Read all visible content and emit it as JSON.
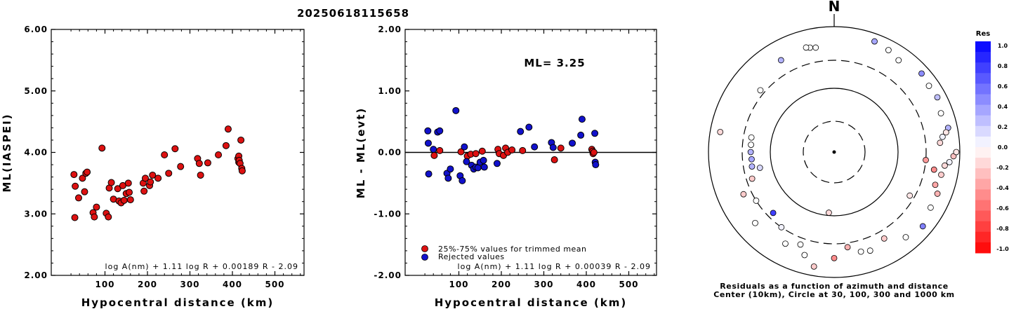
{
  "title": "20250618115658",
  "colors": {
    "accepted": "#dd1111",
    "rejected": "#1111cc",
    "axis": "#000000"
  },
  "chart_data": [
    {
      "type": "scatter",
      "name_key": "left",
      "xlabel": "Hypocentral distance (km)",
      "ylabel": "ML(IASPEI)",
      "xlim": [
        0,
        600
      ],
      "ylim": [
        2.0,
        6.0
      ],
      "xticks": [
        100,
        200,
        300,
        400,
        500
      ],
      "yticks": [
        "2.00",
        "3.00",
        "4.00",
        "5.00",
        "6.00"
      ],
      "formula": "log A(nm) + 1.11 log R + 0.00189 R - 2.09",
      "points": [
        {
          "x": 27,
          "y": 3.64
        },
        {
          "x": 30,
          "y": 3.45
        },
        {
          "x": 29,
          "y": 2.94
        },
        {
          "x": 38,
          "y": 3.26
        },
        {
          "x": 47,
          "y": 3.58
        },
        {
          "x": 52,
          "y": 3.36
        },
        {
          "x": 55,
          "y": 3.66
        },
        {
          "x": 58,
          "y": 3.68
        },
        {
          "x": 72,
          "y": 3.02
        },
        {
          "x": 75,
          "y": 2.95
        },
        {
          "x": 80,
          "y": 3.11
        },
        {
          "x": 93,
          "y": 4.07
        },
        {
          "x": 103,
          "y": 3.01
        },
        {
          "x": 108,
          "y": 2.95
        },
        {
          "x": 110,
          "y": 3.42
        },
        {
          "x": 115,
          "y": 3.51
        },
        {
          "x": 120,
          "y": 3.24
        },
        {
          "x": 130,
          "y": 3.41
        },
        {
          "x": 133,
          "y": 3.21
        },
        {
          "x": 138,
          "y": 3.18
        },
        {
          "x": 142,
          "y": 3.46
        },
        {
          "x": 145,
          "y": 3.22
        },
        {
          "x": 150,
          "y": 3.33
        },
        {
          "x": 155,
          "y": 3.5
        },
        {
          "x": 157,
          "y": 3.35
        },
        {
          "x": 160,
          "y": 3.23
        },
        {
          "x": 190,
          "y": 3.5
        },
        {
          "x": 192,
          "y": 3.37
        },
        {
          "x": 195,
          "y": 3.58
        },
        {
          "x": 205,
          "y": 3.46
        },
        {
          "x": 207,
          "y": 3.52
        },
        {
          "x": 212,
          "y": 3.63
        },
        {
          "x": 225,
          "y": 3.58
        },
        {
          "x": 240,
          "y": 3.96
        },
        {
          "x": 250,
          "y": 3.66
        },
        {
          "x": 265,
          "y": 4.06
        },
        {
          "x": 278,
          "y": 3.77
        },
        {
          "x": 318,
          "y": 3.9
        },
        {
          "x": 322,
          "y": 3.82
        },
        {
          "x": 325,
          "y": 3.63
        },
        {
          "x": 342,
          "y": 3.83
        },
        {
          "x": 367,
          "y": 3.96
        },
        {
          "x": 385,
          "y": 4.11
        },
        {
          "x": 390,
          "y": 4.38
        },
        {
          "x": 413,
          "y": 3.9
        },
        {
          "x": 415,
          "y": 3.84
        },
        {
          "x": 415,
          "y": 3.94
        },
        {
          "x": 416,
          "y": 3.87
        },
        {
          "x": 418,
          "y": 3.82
        },
        {
          "x": 420,
          "y": 4.2
        },
        {
          "x": 422,
          "y": 3.74
        },
        {
          "x": 423,
          "y": 3.7
        }
      ]
    },
    {
      "type": "scatter",
      "name_key": "middle",
      "xlabel": "Hypocentral distance (km)",
      "ylabel": "ML - ML(evt)",
      "xlim": [
        0,
        600
      ],
      "ylim": [
        -2.0,
        2.0
      ],
      "xticks": [
        100,
        200,
        300,
        400,
        500
      ],
      "yticks": [
        "-2.00",
        "-1.00",
        "0.00",
        "1.00",
        "2.00"
      ],
      "hline": 0.0,
      "ml_label": "ML=  3.25",
      "formula": "log A(nm) + 1.11 log R + 0.00039 R - 2.09",
      "legend": {
        "accepted": "25%-75% values for trimmed mean",
        "rejected": "Rejected values"
      },
      "series": [
        {
          "role": "accepted",
          "points": [
            {
              "x": 42,
              "y": -0.05
            },
            {
              "x": 55,
              "y": 0.03
            },
            {
              "x": 105,
              "y": 0.01
            },
            {
              "x": 120,
              "y": -0.06
            },
            {
              "x": 128,
              "y": -0.03
            },
            {
              "x": 140,
              "y": -0.02
            },
            {
              "x": 155,
              "y": 0.02
            },
            {
              "x": 192,
              "y": 0.05
            },
            {
              "x": 195,
              "y": -0.02
            },
            {
              "x": 205,
              "y": -0.05
            },
            {
              "x": 210,
              "y": 0.07
            },
            {
              "x": 215,
              "y": 0.0
            },
            {
              "x": 225,
              "y": 0.04
            },
            {
              "x": 250,
              "y": 0.03
            },
            {
              "x": 325,
              "y": -0.12
            },
            {
              "x": 340,
              "y": 0.07
            },
            {
              "x": 413,
              "y": 0.05
            },
            {
              "x": 415,
              "y": 0.02
            },
            {
              "x": 416,
              "y": -0.02
            },
            {
              "x": 418,
              "y": 0.0
            }
          ]
        },
        {
          "role": "rejected",
          "points": [
            {
              "x": 27,
              "y": 0.35
            },
            {
              "x": 28,
              "y": 0.15
            },
            {
              "x": 29,
              "y": -0.35
            },
            {
              "x": 40,
              "y": 0.05
            },
            {
              "x": 50,
              "y": 0.33
            },
            {
              "x": 55,
              "y": 0.35
            },
            {
              "x": 72,
              "y": -0.34
            },
            {
              "x": 75,
              "y": -0.42
            },
            {
              "x": 80,
              "y": -0.27
            },
            {
              "x": 93,
              "y": 0.68
            },
            {
              "x": 103,
              "y": -0.38
            },
            {
              "x": 108,
              "y": -0.46
            },
            {
              "x": 113,
              "y": 0.09
            },
            {
              "x": 118,
              "y": -0.15
            },
            {
              "x": 130,
              "y": -0.21
            },
            {
              "x": 135,
              "y": -0.27
            },
            {
              "x": 140,
              "y": -0.24
            },
            {
              "x": 145,
              "y": -0.25
            },
            {
              "x": 150,
              "y": -0.16
            },
            {
              "x": 158,
              "y": -0.13
            },
            {
              "x": 160,
              "y": -0.24
            },
            {
              "x": 190,
              "y": -0.18
            },
            {
              "x": 245,
              "y": 0.34
            },
            {
              "x": 265,
              "y": 0.41
            },
            {
              "x": 278,
              "y": 0.09
            },
            {
              "x": 318,
              "y": 0.16
            },
            {
              "x": 322,
              "y": 0.08
            },
            {
              "x": 367,
              "y": 0.15
            },
            {
              "x": 387,
              "y": 0.28
            },
            {
              "x": 390,
              "y": 0.54
            },
            {
              "x": 420,
              "y": 0.31
            },
            {
              "x": 421,
              "y": -0.16
            },
            {
              "x": 422,
              "y": -0.2
            }
          ]
        }
      ]
    },
    {
      "type": "scatter",
      "name_key": "polar",
      "north_label": "N",
      "caption_line1": "Residuals as a function of azimuth and distance",
      "caption_line2": "Center (10km), Circle at 30, 100, 300 and 1000 km",
      "rings_km": [
        30,
        100,
        300,
        1000
      ],
      "rings_dashed": [
        true,
        false,
        true,
        false
      ],
      "colorbar": {
        "title": "Res",
        "ticks": [
          "1.0",
          "0.8",
          "0.6",
          "0.4",
          "0.2",
          "0.0",
          "-0.2",
          "-0.4",
          "-0.6",
          "-0.8",
          "-1.0"
        ],
        "min": -1.0,
        "max": 1.0
      },
      "points": [
        {
          "az": 350,
          "dist": 500,
          "res": 0.0
        },
        {
          "az": 347,
          "dist": 520,
          "res": 0.0
        },
        {
          "az": 345,
          "dist": 540,
          "res": 0.0
        },
        {
          "az": 330,
          "dist": 500,
          "res": 0.3
        },
        {
          "az": 310,
          "dist": 350,
          "res": 0.0
        },
        {
          "az": 280,
          "dist": 700,
          "res": -0.15
        },
        {
          "az": 280,
          "dist": 220,
          "res": 0.0
        },
        {
          "az": 275,
          "dist": 215,
          "res": 0.0
        },
        {
          "az": 270,
          "dist": 215,
          "res": 0.3
        },
        {
          "az": 265,
          "dist": 210,
          "res": 0.35
        },
        {
          "az": 260,
          "dist": 215,
          "res": 0.3
        },
        {
          "az": 252,
          "dist": 240,
          "res": -0.2
        },
        {
          "az": 258,
          "dist": 160,
          "res": 0.15
        },
        {
          "az": 245,
          "dist": 400,
          "res": -0.2
        },
        {
          "az": 238,
          "dist": 300,
          "res": 0.0
        },
        {
          "az": 225,
          "dist": 240,
          "res": 0.75
        },
        {
          "az": 228,
          "dist": 500,
          "res": 0.0
        },
        {
          "az": 215,
          "dist": 300,
          "res": 0.05
        },
        {
          "az": 208,
          "dist": 460,
          "res": 0.0
        },
        {
          "az": 200,
          "dist": 380,
          "res": 0.0
        },
        {
          "az": 196,
          "dist": 520,
          "res": 0.0
        },
        {
          "az": 190,
          "dist": 720,
          "res": -0.2
        },
        {
          "az": 185,
          "dist": 90,
          "res": -0.15
        },
        {
          "az": 180,
          "dist": 500,
          "res": -0.45
        },
        {
          "az": 172,
          "dist": 350,
          "res": -0.3
        },
        {
          "az": 165,
          "dist": 450,
          "res": 0.0
        },
        {
          "az": 160,
          "dist": 480,
          "res": 0.0
        },
        {
          "az": 150,
          "dist": 400,
          "res": -0.2
        },
        {
          "az": 140,
          "dist": 600,
          "res": 0.0
        },
        {
          "az": 130,
          "dist": 700,
          "res": 0.5
        },
        {
          "az": 120,
          "dist": 600,
          "res": 0.0
        },
        {
          "az": 112,
          "dist": 600,
          "res": -0.3
        },
        {
          "az": 108,
          "dist": 500,
          "res": -0.35
        },
        {
          "az": 102,
          "dist": 560,
          "res": -0.2
        },
        {
          "az": 100,
          "dist": 420,
          "res": -0.45
        },
        {
          "az": 97,
          "dist": 600,
          "res": -0.15
        },
        {
          "az": 95,
          "dist": 700,
          "res": 0.05
        },
        {
          "az": 92,
          "dist": 800,
          "res": -0.25
        },
        {
          "az": 90,
          "dist": 880,
          "res": -0.1
        },
        {
          "az": 85,
          "dist": 500,
          "res": -0.15
        },
        {
          "az": 82,
          "dist": 560,
          "res": 0.05
        },
        {
          "az": 78,
          "dist": 720,
          "res": 0.3
        },
        {
          "az": 80,
          "dist": 650,
          "res": -0.1
        },
        {
          "az": 70,
          "dist": 650,
          "res": 0.0
        },
        {
          "az": 62,
          "dist": 730,
          "res": 0.25
        },
        {
          "az": 55,
          "dist": 700,
          "res": 0.0
        },
        {
          "az": 48,
          "dist": 750,
          "res": 0.45
        },
        {
          "az": 35,
          "dist": 620,
          "res": 0.0
        },
        {
          "az": 28,
          "dist": 700,
          "res": 0.0
        },
        {
          "az": 20,
          "dist": 760,
          "res": 0.35
        },
        {
          "az": 95,
          "dist": 300,
          "res": -0.4
        },
        {
          "az": 120,
          "dist": 250,
          "res": -0.1
        }
      ]
    }
  ]
}
